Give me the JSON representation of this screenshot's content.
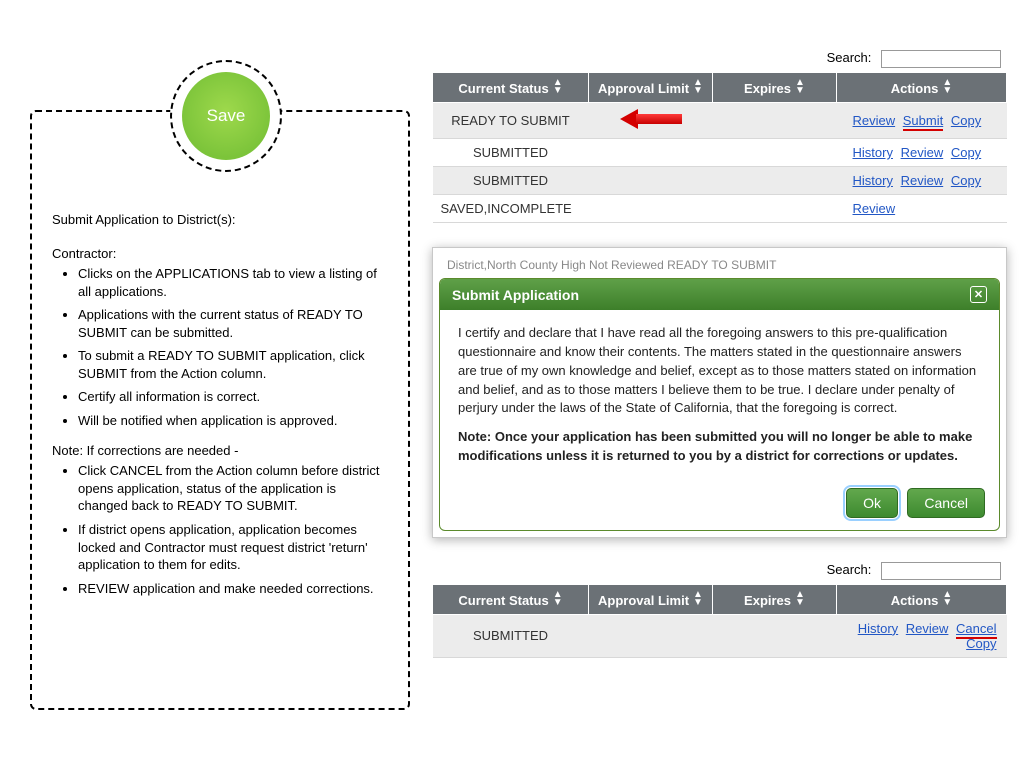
{
  "saveButton": {
    "label": "Save"
  },
  "instructions": {
    "title": "Submit Application to District(s):",
    "leadIn": "Contractor:",
    "steps": [
      "Clicks on the APPLICATIONS tab to view a listing of all applications.",
      "Applications with the current status of READY TO SUBMIT can be submitted.",
      "To submit a READY TO SUBMIT application, click SUBMIT from the Action column.",
      "Certify all information is correct.",
      "Will be notified when application is approved."
    ],
    "noteHead": "Note:  If corrections are needed -",
    "notes": [
      "Click CANCEL from the Action column before district opens application, status of the application  is changed back to READY TO SUBMIT.",
      "If district opens application, application becomes locked and Contractor must request district 'return' application to them for edits.",
      "REVIEW application and make needed corrections."
    ]
  },
  "searchLabel": "Search:",
  "table1": {
    "headers": [
      "Current Status",
      "Approval Limit",
      "Expires",
      "Actions"
    ],
    "colWidths": [
      "156px",
      "124px",
      "124px",
      "auto"
    ],
    "rows": [
      {
        "status": "READY TO SUBMIT",
        "grey": true,
        "arrow": true,
        "actions": [
          {
            "t": "Review"
          },
          {
            "t": "Submit",
            "u": true
          },
          {
            "t": "Copy"
          }
        ]
      },
      {
        "status": "SUBMITTED",
        "grey": false,
        "arrow": false,
        "actions": [
          {
            "t": "History"
          },
          {
            "t": "Review"
          },
          {
            "t": "Copy"
          }
        ]
      },
      {
        "status": "SUBMITTED",
        "grey": true,
        "arrow": false,
        "actions": [
          {
            "t": "History"
          },
          {
            "t": "Review"
          },
          {
            "t": "Copy"
          }
        ]
      },
      {
        "status": "SAVED,INCOMPLETE",
        "grey": false,
        "arrow": false,
        "actions": [
          {
            "t": "Review"
          }
        ],
        "leftAlign": true
      }
    ]
  },
  "modal": {
    "bgText": "District,North County High                  Not Reviewed                          READY TO SUBMIT",
    "title": "Submit Application",
    "certText": "I certify and declare that I have read all the foregoing answers to this pre-qualification questionnaire and know their contents. The matters stated in the questionnaire answers are true of my own knowledge and belief, except as to those matters stated on information and belief, and as to those matters I believe them to be true. I declare under penalty of perjury under the laws of the State of California, that the foregoing is correct.",
    "noteText": "Note: Once your application has been submitted you will no longer be able to make modifications unless it is returned to you by a district for corrections or updates.",
    "okLabel": "Ok",
    "cancelLabel": "Cancel"
  },
  "table2": {
    "headers": [
      "Current Status",
      "Approval Limit",
      "Expires",
      "Actions"
    ],
    "row": {
      "status": "SUBMITTED",
      "actions": [
        {
          "t": "History"
        },
        {
          "t": "Review"
        },
        {
          "t": "Cancel",
          "u": true
        },
        {
          "t": "Copy"
        }
      ]
    }
  },
  "colors": {
    "headerBg": "#6b7176",
    "link": "#2257c5",
    "greenBtn": "#3d8a2f",
    "redUnderline": "#d40000",
    "saveGreen": "#7cc43a"
  }
}
